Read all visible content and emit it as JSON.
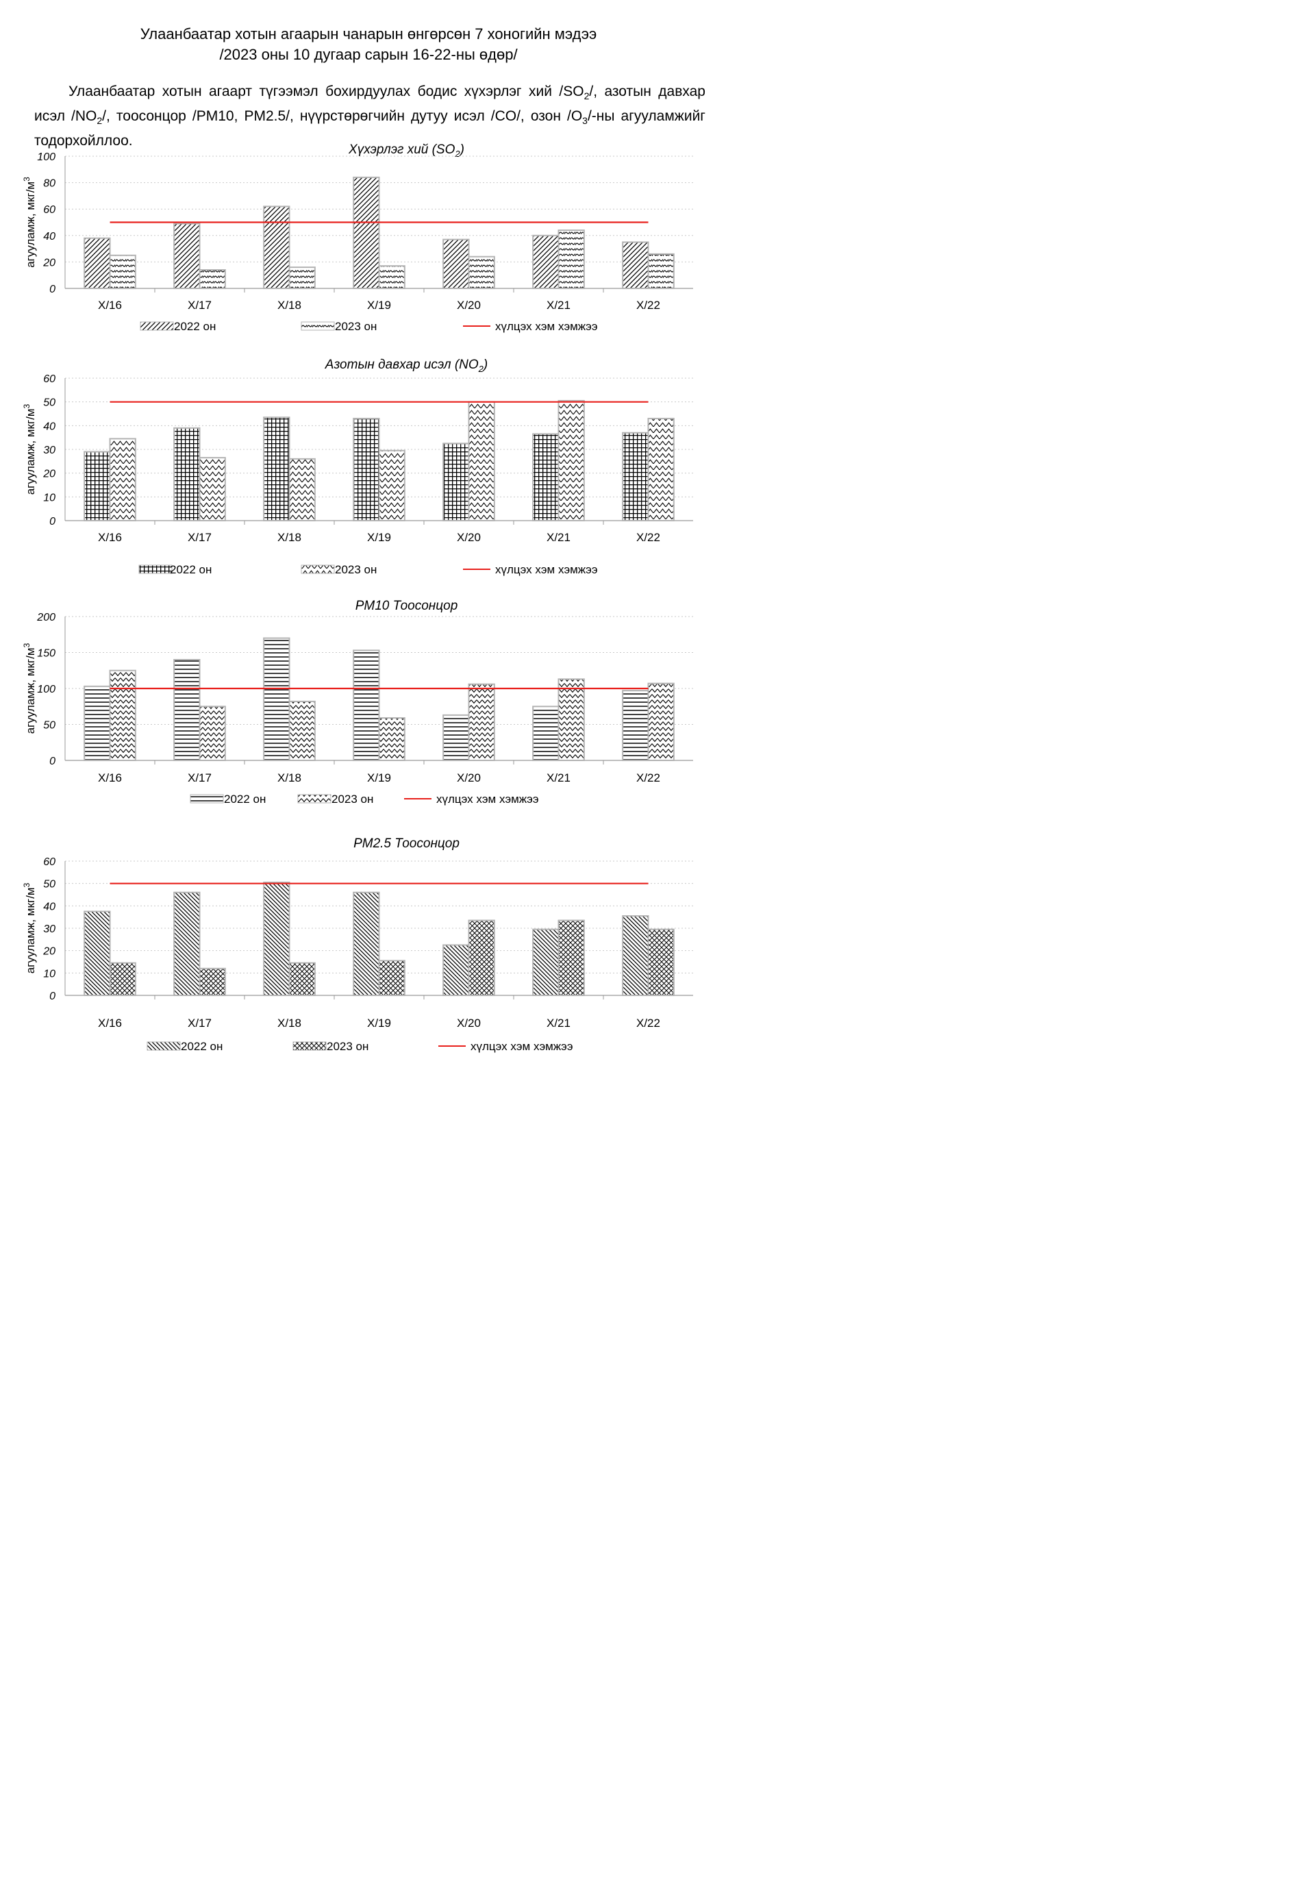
{
  "header": {
    "title_line1": "Улаанбаатар хотын агаарын чанарын өнгөрсөн 7 хоногийн мэдээ",
    "title_line2": "/2023 оны 10 дугаар сарын 16-22-ны өдөр/"
  },
  "intro": {
    "p1": "Улаанбаатар хотын агаарт түгээмэл бохирдуулах бодис хүхэрлэг хий /SO",
    "s1": "2",
    "p2": "/, азотын давхар исэл /NO",
    "s2": "2",
    "p3": "/, тоосонцор /PM10, PM2.5/, нүүрстөрөгчийн дутуу исэл /CO/, озон /O",
    "s3": "3",
    "p4": "/-ны агууламжийг тодорхойллоо."
  },
  "colors": {
    "limit_line": "#e8201c",
    "bar_border": "#b3b3b3",
    "grid": "#c8c8c8",
    "pattern": "#000000"
  },
  "chart_data": [
    {
      "type": "bar",
      "title": "Хүхэрлэг хий (SO",
      "title_sub": "2",
      "title_end": ")",
      "ylabel": "агууламж, мкг/м",
      "ylabel_sup": "3",
      "ylim": [
        0,
        100
      ],
      "yticks": [
        0,
        20,
        40,
        60,
        80,
        100
      ],
      "categories": [
        "X/16",
        "X/17",
        "X/18",
        "X/19",
        "X/20",
        "X/21",
        "X/22"
      ],
      "series": [
        {
          "name": "2022 он",
          "values": [
            38,
            49,
            62,
            84,
            37,
            40,
            35
          ]
        },
        {
          "name": "2023 он",
          "values": [
            25,
            14,
            16,
            17,
            24,
            44,
            26
          ]
        }
      ],
      "limit": {
        "name": "хүлцэх хэм хэмжээ",
        "value": 50
      }
    },
    {
      "type": "bar",
      "title": "Азотын давхар исэл (NO",
      "title_sub": "2",
      "title_end": ")",
      "ylabel": "агууламж, мкг/м",
      "ylabel_sup": "3",
      "ylim": [
        0,
        60
      ],
      "yticks": [
        0,
        10,
        20,
        30,
        40,
        50,
        60
      ],
      "categories": [
        "X/16",
        "X/17",
        "X/18",
        "X/19",
        "X/20",
        "X/21",
        "X/22"
      ],
      "series": [
        {
          "name": "2022 он",
          "values": [
            29,
            39,
            43.5,
            43,
            32.5,
            36.5,
            37
          ]
        },
        {
          "name": "2023 он",
          "values": [
            34.5,
            26.5,
            26,
            29.5,
            50,
            50.5,
            43
          ]
        }
      ],
      "limit": {
        "name": "хүлцэх хэм хэмжээ",
        "value": 50
      }
    },
    {
      "type": "bar",
      "title": "PM10 Тоосонцор",
      "title_sub": "",
      "title_end": "",
      "ylabel": "агууламж, мкг/м",
      "ylabel_sup": "3",
      "ylim": [
        0,
        200
      ],
      "yticks": [
        0,
        50,
        100,
        150,
        200
      ],
      "categories": [
        "X/16",
        "X/17",
        "X/18",
        "X/19",
        "X/20",
        "X/21",
        "X/22"
      ],
      "series": [
        {
          "name": "2022 он",
          "values": [
            103,
            140,
            170,
            153,
            63,
            75,
            97
          ]
        },
        {
          "name": "2023 он",
          "values": [
            125,
            75,
            82,
            59,
            106,
            113,
            107
          ]
        }
      ],
      "limit": {
        "name": "хүлцэх хэм хэмжээ",
        "value": 100
      }
    },
    {
      "type": "bar",
      "title": "PM2.5 Тоосонцор",
      "title_sub": "",
      "title_end": "",
      "ylabel": "агууламж, мкг/м",
      "ylabel_sup": "3",
      "ylim": [
        0,
        60
      ],
      "yticks": [
        0,
        10,
        20,
        30,
        40,
        50,
        60
      ],
      "categories": [
        "X/16",
        "X/17",
        "X/18",
        "X/19",
        "X/20",
        "X/21",
        "X/22"
      ],
      "series": [
        {
          "name": "2022 он",
          "values": [
            37.5,
            46,
            50.5,
            46,
            22.5,
            29.5,
            35.5
          ]
        },
        {
          "name": "2023 он",
          "values": [
            14.5,
            12,
            14.5,
            15.5,
            33.5,
            33.5,
            29.5
          ]
        }
      ],
      "limit": {
        "name": "хүлцэх хэм хэмжээ",
        "value": 50
      }
    }
  ]
}
